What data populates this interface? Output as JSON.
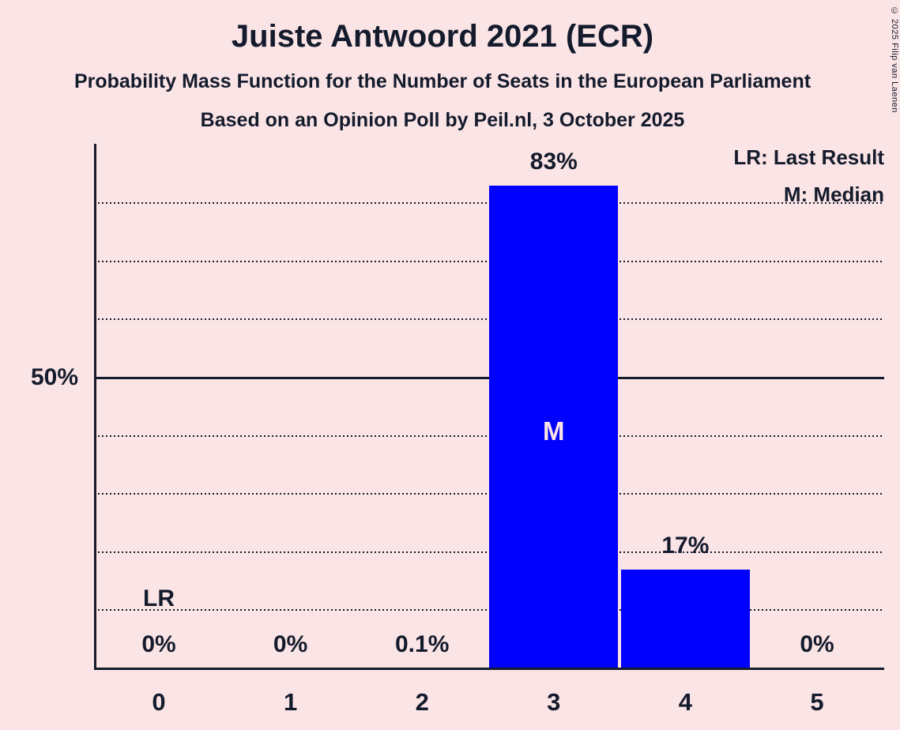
{
  "title": "Juiste Antwoord 2021 (ECR)",
  "subtitle1": "Probability Mass Function for the Number of Seats in the European Parliament",
  "subtitle2": "Based on an Opinion Poll by Peil.nl, 3 October 2025",
  "copyright": "© 2025 Filip van Laenen",
  "legend": {
    "lr": "LR: Last Result",
    "m": "M: Median"
  },
  "y_axis": {
    "label_50": "50%"
  },
  "annotations": {
    "lr_label": "LR",
    "median_label": "M"
  },
  "colors": {
    "background": "#fbe4e5",
    "bar": "#0000ff",
    "text": "#141b2c",
    "median_text": "#fbe4e5"
  },
  "chart_data": {
    "type": "bar",
    "title": "Juiste Antwoord 2021 (ECR)",
    "xlabel": "",
    "ylabel": "",
    "categories": [
      "0",
      "1",
      "2",
      "3",
      "4",
      "5"
    ],
    "values": [
      0,
      0,
      0.1,
      83,
      17,
      0
    ],
    "value_labels": [
      "0%",
      "0%",
      "0.1%",
      "83%",
      "17%",
      "0%"
    ],
    "ylim": [
      0,
      90
    ],
    "gridlines_pct": [
      10,
      20,
      30,
      40,
      50,
      60,
      70,
      80
    ],
    "solid_gridline_pct": 50,
    "grid": "dotted horizontal",
    "median_category": "3",
    "last_result_category": "0",
    "legend_position": "top-right"
  }
}
